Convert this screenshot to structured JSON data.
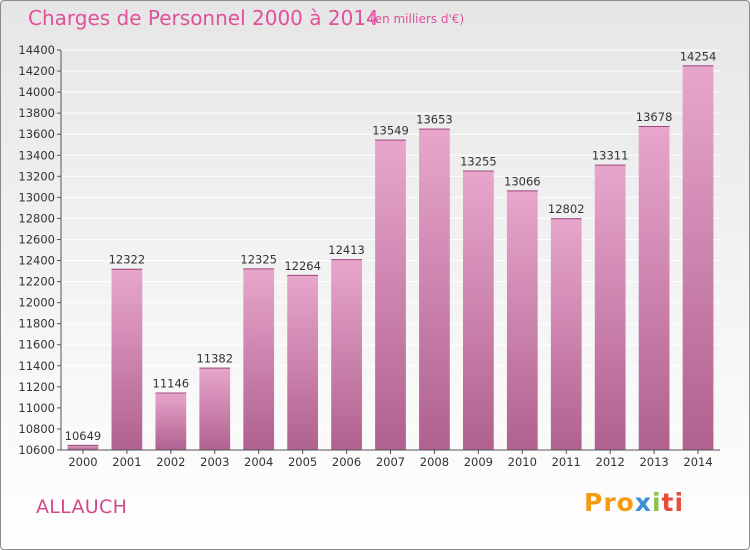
{
  "chart_data": {
    "type": "bar",
    "title": "Charges de Personnel 2000 à 2014",
    "subtitle": "(en milliers d'€)",
    "categories": [
      "2000",
      "2001",
      "2002",
      "2003",
      "2004",
      "2005",
      "2006",
      "2007",
      "2008",
      "2009",
      "2010",
      "2011",
      "2012",
      "2013",
      "2014"
    ],
    "values": [
      10649,
      12322,
      11146,
      11382,
      12325,
      12264,
      12413,
      13549,
      13653,
      13255,
      13066,
      12802,
      13311,
      13678,
      14254
    ],
    "ylim": [
      10600,
      14400
    ],
    "yticks": [
      10600,
      10800,
      11000,
      11200,
      11400,
      11600,
      11800,
      12000,
      12200,
      12400,
      12600,
      12800,
      13000,
      13200,
      13400,
      13600,
      13800,
      14000,
      14200,
      14400
    ],
    "grid": true,
    "bar_color_top": "#e8a6cc",
    "bar_color_bottom": "#b0618f"
  },
  "footer": {
    "city": "ALLAUCH",
    "logo": [
      "Pro",
      "x",
      "i",
      "ti"
    ]
  }
}
